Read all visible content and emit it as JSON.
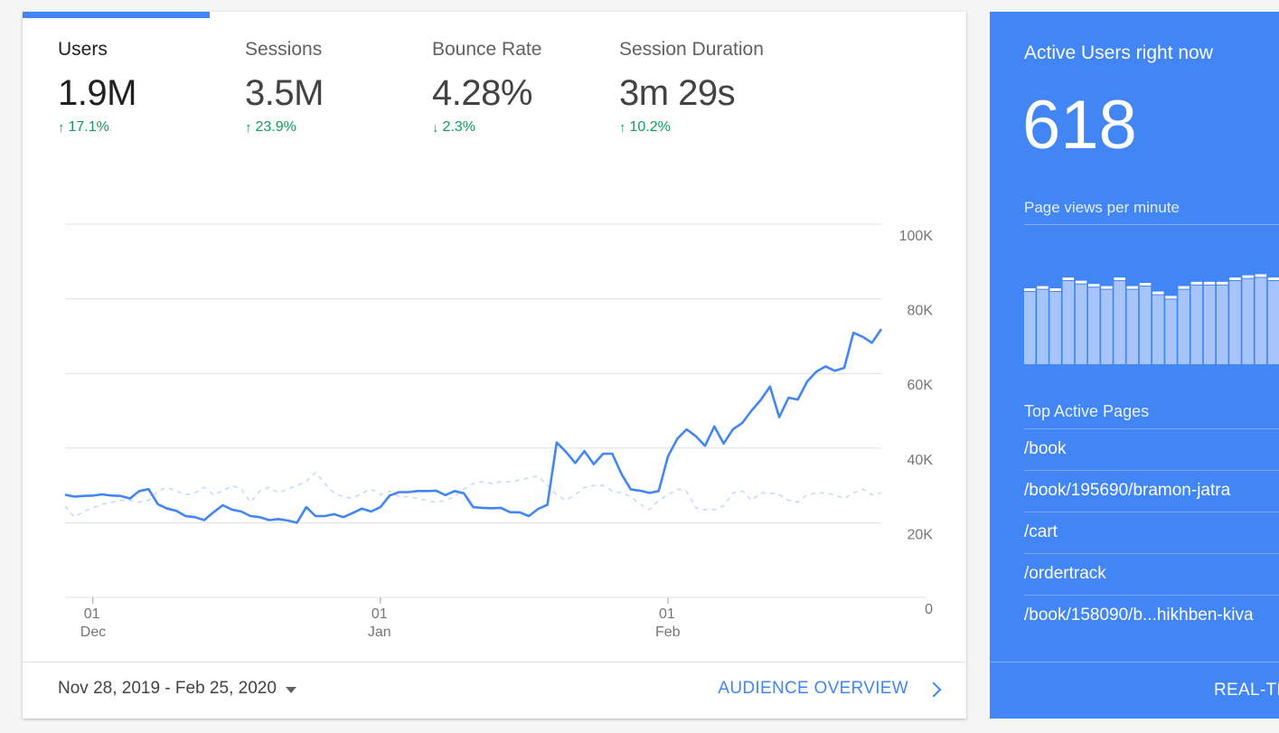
{
  "metrics": [
    {
      "label": "Users",
      "value": "1.9M",
      "change": "17.1%",
      "direction": "up",
      "active": true
    },
    {
      "label": "Sessions",
      "value": "3.5M",
      "change": "23.9%",
      "direction": "up",
      "active": false
    },
    {
      "label": "Bounce Rate",
      "value": "4.28%",
      "change": "2.3%",
      "direction": "down",
      "active": false
    },
    {
      "label": "Session Duration",
      "value": "3m 29s",
      "change": "10.2%",
      "direction": "up",
      "active": false
    }
  ],
  "icons": {
    "up": "↑",
    "down": "↓"
  },
  "colors": {
    "accent": "#4285f4",
    "positive": "#0f9d58",
    "panel": "#4285f4",
    "compare_line": "#c6dafc"
  },
  "chart_data": {
    "type": "line",
    "ylim": [
      0,
      100000
    ],
    "y_ticks": [
      "0",
      "20K",
      "40K",
      "60K",
      "80K",
      "100K"
    ],
    "x_ticks": [
      {
        "day": "01",
        "month": "Dec",
        "index": 3
      },
      {
        "day": "01",
        "month": "Jan",
        "index": 34
      },
      {
        "day": "01",
        "month": "Feb",
        "index": 65
      }
    ],
    "grid": true,
    "series": [
      {
        "style": "solid",
        "values": [
          27500,
          27000,
          27200,
          27300,
          27600,
          27300,
          27200,
          26500,
          28500,
          29000,
          25000,
          23800,
          23200,
          21800,
          21500,
          20700,
          22800,
          24700,
          23500,
          23000,
          21800,
          21500,
          20700,
          21000,
          20600,
          20000,
          24200,
          21800,
          21800,
          22300,
          21500,
          22600,
          23800,
          23000,
          24200,
          27300,
          28200,
          28200,
          28500,
          28500,
          28600,
          27400,
          28500,
          27900,
          24200,
          24000,
          23900,
          24000,
          22800,
          22800,
          21800,
          23700,
          24800,
          41500,
          39000,
          36000,
          39200,
          35700,
          38500,
          38500,
          33000,
          28900,
          28600,
          28000,
          28500,
          37800,
          42500,
          45000,
          43200,
          40600,
          45800,
          41200,
          45000,
          46700,
          50000,
          52900,
          56500,
          48300,
          53500,
          53000,
          57800,
          60500,
          61900,
          60700,
          61500,
          70900,
          69800,
          68200,
          71900
        ]
      },
      {
        "style": "dashed",
        "values": [
          24500,
          21500,
          23000,
          24000,
          25000,
          25500,
          26000,
          26000,
          25500,
          26000,
          28500,
          29500,
          28500,
          27500,
          28000,
          29500,
          27500,
          28500,
          30000,
          29000,
          25500,
          28500,
          29500,
          28000,
          29000,
          30000,
          31000,
          33500,
          30500,
          28000,
          27000,
          26500,
          28000,
          29000,
          27500,
          28500,
          27000,
          27000,
          26500,
          26000,
          25500,
          26000,
          27000,
          29000,
          30500,
          31000,
          30500,
          31000,
          31000,
          31500,
          32000,
          32500,
          30000,
          27500,
          26000,
          27500,
          29500,
          30000,
          30000,
          28500,
          28000,
          27000,
          25000,
          23500,
          26000,
          27500,
          29000,
          28500,
          24000,
          23500,
          23500,
          24500,
          28000,
          28500,
          26000,
          28000,
          28000,
          27500,
          26000,
          25500,
          27500,
          28000,
          28000,
          27500,
          26500,
          28000,
          29000,
          27500,
          28000
        ]
      }
    ]
  },
  "date_range": "Nov 28, 2019 - Feb 25, 2020",
  "overview_link": "AUDIENCE OVERVIEW",
  "realtime": {
    "title": "Active Users right now",
    "count": "618",
    "subtitle": "Page views per minute",
    "minibar_data": [
      70,
      72,
      70,
      80,
      77,
      74,
      72,
      80,
      72,
      75,
      67,
      63,
      72,
      76,
      76,
      76,
      80,
      82,
      83,
      80,
      75
    ],
    "top_pages_heading": "Top Active Pages",
    "top_pages": [
      "/book",
      "/book/195690/bramon-jatra",
      "/cart",
      "/ordertrack",
      "/book/158090/b...hikhben-kiva"
    ],
    "footer_link": "REAL-TI"
  }
}
